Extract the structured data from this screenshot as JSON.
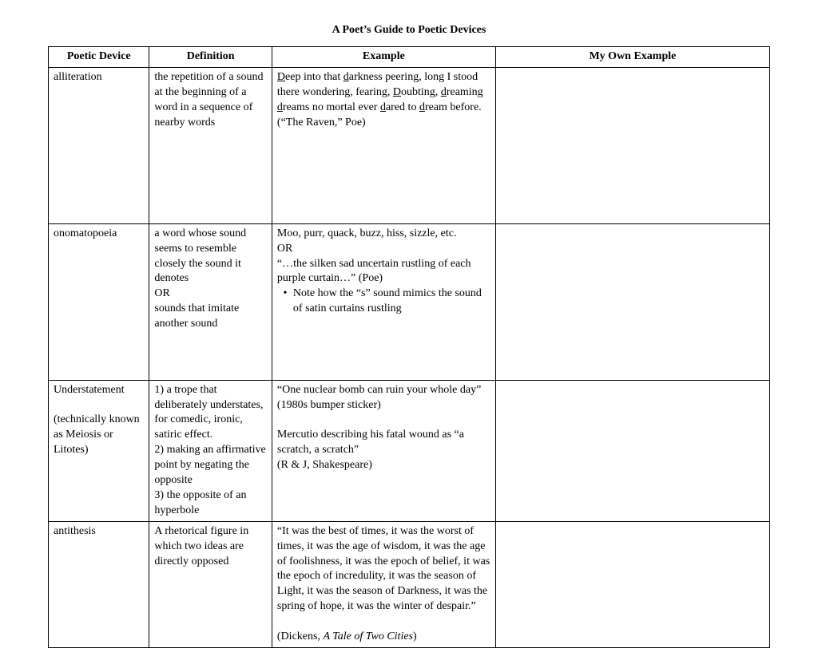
{
  "title": "A Poet’s Guide to Poetic Devices",
  "columns": [
    "Poetic Device",
    "Definition",
    "Example",
    "My Own Example"
  ],
  "rows": [
    {
      "device_html": "alliteration",
      "definition_html": "the repetition of a sound at the beginning of a word in a sequence of nearby words",
      "example_html": "<span class='u'>D</span>eep into that <span class='u'>d</span>arkness peering, long I stood there wondering, fearing, <span class='u'>D</span>oubting, <span class='u'>d</span>reaming <span class='u'>d</span>reams no mortal ever <span class='u'>d</span>ared to <span class='u'>d</span>ream before. (“The Raven,” Poe)",
      "example_extra_lines": 6,
      "own": ""
    },
    {
      "device_html": "onomatopoeia",
      "definition_html": "a word whose sound seems to resemble closely the sound it denotes<br>OR<br>sounds that imitate another sound",
      "example_html": "Moo, purr, quack, buzz, hiss, sizzle, etc.<br>OR<br>“…the silken sad uncertain rustling of each purple curtain…” (Poe)<div class='bullet-row'><span class='bullet-dot'>•</span><span class='bullet-txt'>Note how the “s” sound mimics the sound of satin curtains rustling</span></div>",
      "example_extra_lines": 3,
      "own": ""
    },
    {
      "device_html": "Understatement<br><br>(technically known as Meiosis or Litotes)",
      "definition_html": "1) a trope that deliberately understates, for comedic, ironic, satiric effect.<br>2) making an affirmative point by negating the opposite<br>3) the opposite of an hyperbole",
      "example_html": "“One nuclear bomb can ruin your whole day” (1980s bumper sticker)<br><br>Mercutio describing his fatal wound as “a scratch, a scratch”<br>(R & J, Shakespeare)",
      "example_extra_lines": 1,
      "own": ""
    },
    {
      "device_html": "antithesis",
      "definition_html": "A rhetorical figure in which two ideas are directly opposed",
      "example_html": "“It was the best of times, it was the worst of times, it was the age of wisdom, it was the age of foolishness, it was the epoch of belief, it was the epoch of incredulity, it was the season of Light, it was the season of Darkness, it was the spring of hope, it was the winter of despair.”<br><br>(Dickens, <span class='i'>A Tale of Two Cities</span>)",
      "example_extra_lines": 0,
      "own": ""
    }
  ],
  "style": {
    "font_family": "Times New Roman",
    "title_fontsize_pt": 11,
    "cell_fontsize_pt": 11,
    "border_color": "#000000",
    "background_color": "#ffffff",
    "text_color": "#000000",
    "col_widths_pct": [
      14,
      17,
      31,
      38
    ]
  }
}
